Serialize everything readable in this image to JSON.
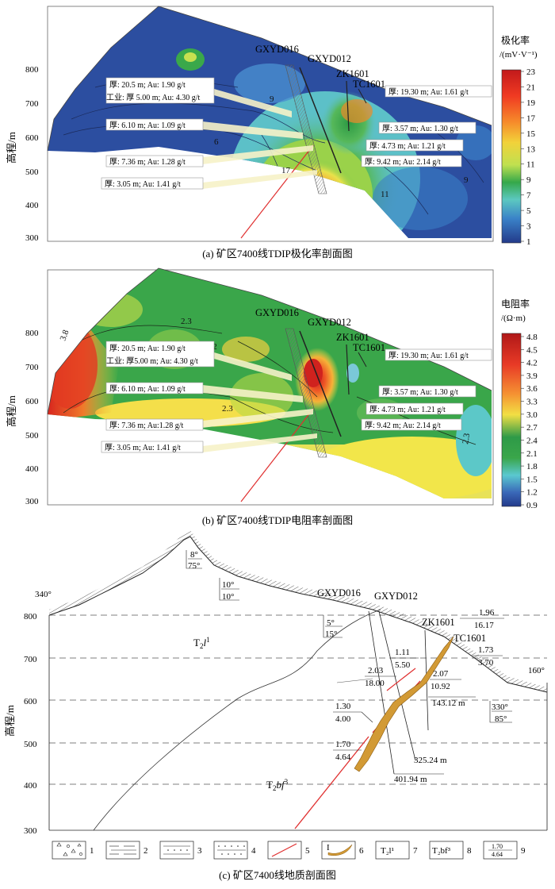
{
  "panel_a": {
    "caption": "(a) 矿区7400线TDIP极化率剖面图",
    "ylabel": "高程/m",
    "yticks": [
      "800",
      "700",
      "600",
      "500",
      "400",
      "300"
    ],
    "colorbar_title": "极化率",
    "colorbar_unit": "/(mV·V⁻¹)",
    "colorbar_ticks": [
      "23",
      "21",
      "19",
      "17",
      "15",
      "13",
      "11",
      "9",
      "7",
      "5",
      "3",
      "1"
    ],
    "contour_labels": [
      "9",
      "6",
      "6",
      "9",
      "11",
      "17",
      "9"
    ]
  },
  "panel_b": {
    "caption": "(b) 矿区7400线TDIP电阻率剖面图",
    "ylabel": "高程/m",
    "yticks": [
      "800",
      "700",
      "600",
      "500",
      "400",
      "300"
    ],
    "colorbar_title": "电阻率",
    "colorbar_unit": "/(Ω·m)",
    "colorbar_ticks": [
      "4.8",
      "4.5",
      "4.2",
      "3.9",
      "3.6",
      "3.3",
      "3.0",
      "2.7",
      "2.4",
      "2.1",
      "1.8",
      "1.5",
      "1.2",
      "0.9"
    ],
    "contour_labels": [
      "3.8",
      "2.3",
      "2.2",
      "2.3",
      "2.3"
    ]
  },
  "boreholes": {
    "gxyd016": "GXYD016",
    "gxyd012": "GXYD012",
    "zk1601": "ZK1601",
    "tc1601": "TC1601"
  },
  "annotations_a": [
    "厚: 20.5 m; Au: 1.90 g/t",
    "工业: 厚 5.00 m; Au: 4.30 g/t",
    "厚: 6.10 m; Au: 1.09 g/t",
    "厚: 7.36 m; Au: 1.28 g/t",
    "厚: 3.05 m; Au: 1.41 g/t",
    "厚: 19.30 m; Au: 1.61 g/t",
    "厚: 3.57 m; Au: 1.30 g/t",
    "厚: 4.73 m; Au: 1.21 g/t",
    "厚: 9.42 m; Au: 2.14 g/t"
  ],
  "annotations_b": [
    "厚: 20.5 m; Au: 1.90 g/t",
    "工业: 厚5.00 m; Au: 4.30 g/t",
    "厚: 6.10 m; Au: 1.09 g/t",
    "厚: 7.36 m; Au:1.28 g/t",
    "厚: 3.05 m; Au: 1.41 g/t",
    "厚: 19.30 m; Au: 1.61 g/t",
    "厚: 3.57 m; Au: 1.30 g/t",
    "厚: 4.73 m; Au: 1.21 g/t",
    "厚: 9.42 m; Au: 2.14 g/t"
  ],
  "panel_c": {
    "caption": "(c) 矿区7400线地质剖面图",
    "ylabel": "高程/m",
    "yticks": [
      "800",
      "700",
      "600",
      "500",
      "400",
      "300"
    ],
    "azimuth_left": "340°",
    "azimuth_right": "160°",
    "attitudes": [
      {
        "a": "8°",
        "b": "75°"
      },
      {
        "a": "10°",
        "b": "10°"
      },
      {
        "a": "5°",
        "b": "15°"
      },
      {
        "a": "330°",
        "b": "85°"
      }
    ],
    "fractions": [
      {
        "a": "1.96",
        "b": "16.17"
      },
      {
        "a": "1.73",
        "b": "3.70"
      },
      {
        "a": "1.11",
        "b": "5.50"
      },
      {
        "a": "2.03",
        "b": "18.00"
      },
      {
        "a": "2.07",
        "b": "10.92"
      },
      {
        "a": "1.30",
        "b": "4.00"
      },
      {
        "a": "1.70",
        "b": "4.64"
      }
    ],
    "depths": [
      "143.12 m",
      "325.24 m",
      "401.94 m"
    ],
    "strata_upper": "T",
    "strata_upper_sub": "2",
    "strata_upper_main": "l",
    "strata_upper_sup": "1",
    "strata_lower": "T",
    "strata_lower_sub": "2",
    "strata_lower_main": "bf",
    "strata_lower_sup": "3",
    "legend": [
      "1",
      "2",
      "3",
      "4",
      "5",
      "6",
      "7",
      "8",
      "9"
    ],
    "legend_box7": "T₂l¹",
    "legend_box8": "T₂bf³",
    "legend_box9_a": "1.70",
    "legend_box9_b": "4.64",
    "legend_box6": "I"
  },
  "colors": {
    "red": "#d7191c",
    "orange": "#f07a2a",
    "yellow": "#f2e64a",
    "green": "#3aa64a",
    "cyan": "#6cc7d6",
    "blue": "#2c57a8",
    "darkblue": "#23336f",
    "ore": "#d29a35",
    "fault": "#e03030"
  }
}
